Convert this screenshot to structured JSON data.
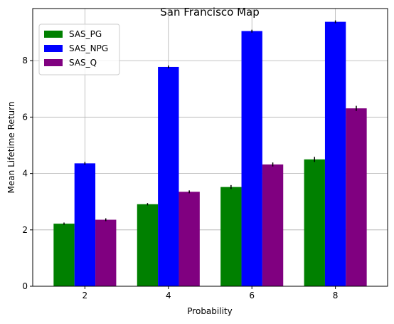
{
  "chart_data": {
    "type": "bar",
    "title": "San Francisco Map",
    "xlabel": "Probability",
    "ylabel": "Mean Lifetime Return",
    "categories": [
      "2",
      "4",
      "6",
      "8"
    ],
    "x": [
      2,
      4,
      6,
      8
    ],
    "xlim": [
      0.75,
      9.25
    ],
    "ylim": [
      0,
      9.85
    ],
    "yticks": [
      0,
      2,
      4,
      6,
      8
    ],
    "xticks": [
      2,
      4,
      6,
      8
    ],
    "grid": true,
    "legend_position": "top-left",
    "series": [
      {
        "name": "SAS_PG",
        "color": "#008000",
        "values": [
          2.22,
          2.91,
          3.52,
          4.5
        ],
        "errors": [
          0.04,
          0.04,
          0.07,
          0.09
        ]
      },
      {
        "name": "SAS_NPG",
        "color": "#0000ff",
        "values": [
          4.36,
          7.78,
          9.05,
          9.38
        ],
        "errors": [
          0.05,
          0.05,
          0.05,
          0.05
        ]
      },
      {
        "name": "SAS_Q",
        "color": "#800080",
        "values": [
          2.36,
          3.35,
          4.32,
          6.31
        ],
        "errors": [
          0.05,
          0.05,
          0.07,
          0.09
        ]
      }
    ]
  }
}
